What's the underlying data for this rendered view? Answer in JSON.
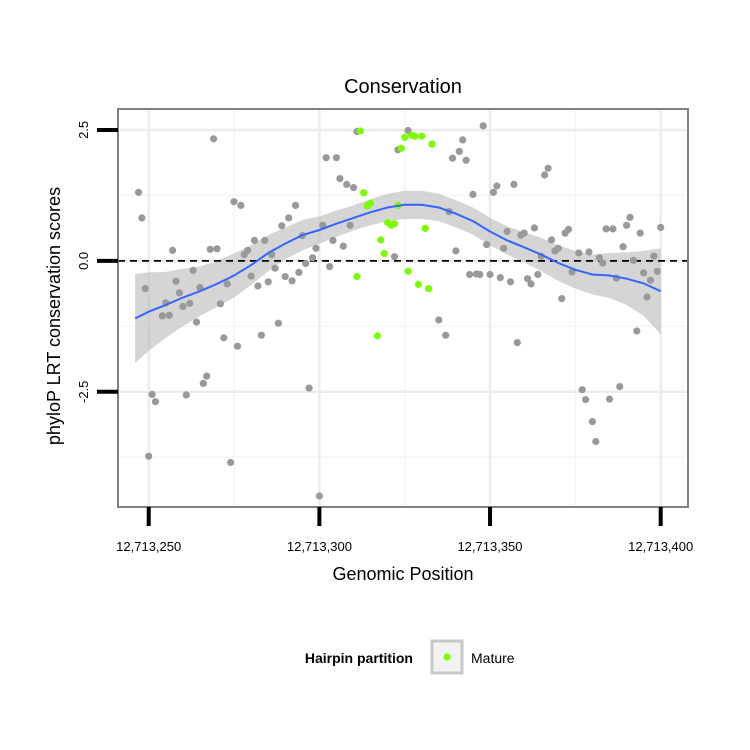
{
  "chart_data": {
    "type": "scatter",
    "title": "Conservation",
    "xlabel": "Genomic Position",
    "ylabel": "phyloP LRT conservation scores",
    "xlim": [
      12713241,
      12713408
    ],
    "ylim": [
      -4.7,
      2.9
    ],
    "x_ticks": [
      12713250,
      12713300,
      12713350,
      12713400
    ],
    "x_tick_labels": [
      "12,713,250",
      "12,713,300",
      "12,713,350",
      "12,713,400"
    ],
    "y_ticks": [
      -2.5,
      0.0,
      2.5
    ],
    "y_tick_labels": [
      "-2.5",
      "0.0",
      "2.5"
    ],
    "minor_y": [
      -3.75,
      -1.25,
      1.25
    ],
    "minor_x": [
      12713275,
      12713325,
      12713375
    ],
    "grid": true,
    "reference_line": {
      "y": 0,
      "style": "dashed",
      "color": "#000000"
    },
    "colors": {
      "other": "#999999",
      "mature": "#7cfc00",
      "smooth": "#3366ff",
      "band": "#bfbfbf",
      "panel_border": "#808080",
      "grid": "#ececec"
    },
    "legend": {
      "title": "Hairpin partition",
      "entries": [
        {
          "label": "Mature",
          "color": "#7cfc00"
        }
      ],
      "placement": "bottom"
    },
    "series": [
      {
        "name": "Other",
        "points": [
          [
            12713247,
            1.31
          ],
          [
            12713248,
            0.82
          ],
          [
            12713249,
            -0.53
          ],
          [
            12713250,
            -3.73
          ],
          [
            12713251,
            -2.55
          ],
          [
            12713252,
            -2.69
          ],
          [
            12713254,
            -1.05
          ],
          [
            12713255,
            -0.8
          ],
          [
            12713256,
            -1.04
          ],
          [
            12713257,
            0.2
          ],
          [
            12713258,
            -0.39
          ],
          [
            12713259,
            -0.61
          ],
          [
            12713260,
            -0.87
          ],
          [
            12713261,
            -2.56
          ],
          [
            12713262,
            -0.81
          ],
          [
            12713263,
            -0.18
          ],
          [
            12713264,
            -1.17
          ],
          [
            12713265,
            -0.51
          ],
          [
            12713266,
            -2.34
          ],
          [
            12713267,
            -2.2
          ],
          [
            12713268,
            0.22
          ],
          [
            12713269,
            2.33
          ],
          [
            12713270,
            0.23
          ],
          [
            12713271,
            -0.82
          ],
          [
            12713272,
            -1.47
          ],
          [
            12713273,
            -0.44
          ],
          [
            12713274,
            -3.85
          ],
          [
            12713275,
            1.13
          ],
          [
            12713276,
            -1.63
          ],
          [
            12713277,
            1.06
          ],
          [
            12713278,
            0.12
          ],
          [
            12713279,
            0.2
          ],
          [
            12713280,
            -0.29
          ],
          [
            12713281,
            0.39
          ],
          [
            12713282,
            -0.48
          ],
          [
            12713283,
            -1.42
          ],
          [
            12713284,
            0.39
          ],
          [
            12713285,
            -0.4
          ],
          [
            12713286,
            0.12
          ],
          [
            12713287,
            -0.14
          ],
          [
            12713288,
            -1.19
          ],
          [
            12713289,
            0.67
          ],
          [
            12713290,
            -0.3
          ],
          [
            12713291,
            0.82
          ],
          [
            12713292,
            -0.38
          ],
          [
            12713293,
            1.06
          ],
          [
            12713294,
            -0.22
          ],
          [
            12713295,
            0.48
          ],
          [
            12713296,
            -0.05
          ],
          [
            12713297,
            -2.43
          ],
          [
            12713298,
            0.06
          ],
          [
            12713299,
            0.24
          ],
          [
            12713300,
            -4.49
          ],
          [
            12713301,
            0.68
          ],
          [
            12713302,
            1.97
          ],
          [
            12713303,
            -0.11
          ],
          [
            12713304,
            0.39
          ],
          [
            12713305,
            1.97
          ],
          [
            12713306,
            1.57
          ],
          [
            12713307,
            0.28
          ],
          [
            12713308,
            1.46
          ],
          [
            12713309,
            0.68
          ],
          [
            12713310,
            1.4
          ],
          [
            12713311,
            2.47
          ],
          [
            12713322,
            0.08
          ],
          [
            12713323,
            2.12
          ],
          [
            12713326,
            2.49
          ],
          [
            12713335,
            -1.13
          ],
          [
            12713337,
            -1.42
          ],
          [
            12713338,
            0.94
          ],
          [
            12713339,
            1.96
          ],
          [
            12713340,
            0.19
          ],
          [
            12713341,
            2.09
          ],
          [
            12713342,
            2.31
          ],
          [
            12713343,
            1.92
          ],
          [
            12713344,
            -0.26
          ],
          [
            12713345,
            1.27
          ],
          [
            12713346,
            -0.25
          ],
          [
            12713347,
            -0.26
          ],
          [
            12713348,
            2.58
          ],
          [
            12713349,
            0.31
          ],
          [
            12713350,
            -0.26
          ],
          [
            12713351,
            1.31
          ],
          [
            12713352,
            1.43
          ],
          [
            12713353,
            -0.32
          ],
          [
            12713354,
            0.24
          ],
          [
            12713355,
            0.56
          ],
          [
            12713356,
            -0.4
          ],
          [
            12713357,
            1.46
          ],
          [
            12713358,
            -1.56
          ],
          [
            12713359,
            0.49
          ],
          [
            12713360,
            0.53
          ],
          [
            12713361,
            -0.34
          ],
          [
            12713362,
            -0.44
          ],
          [
            12713363,
            0.63
          ],
          [
            12713364,
            -0.26
          ],
          [
            12713365,
            0.09
          ],
          [
            12713366,
            1.64
          ],
          [
            12713367,
            1.77
          ],
          [
            12713368,
            0.4
          ],
          [
            12713369,
            0.19
          ],
          [
            12713370,
            0.24
          ],
          [
            12713371,
            -0.72
          ],
          [
            12713372,
            0.53
          ],
          [
            12713373,
            0.6
          ],
          [
            12713374,
            -0.21
          ],
          [
            12713376,
            0.15
          ],
          [
            12713377,
            -2.46
          ],
          [
            12713378,
            -2.65
          ],
          [
            12713379,
            0.17
          ],
          [
            12713380,
            -3.07
          ],
          [
            12713381,
            -3.45
          ],
          [
            12713382,
            0.06
          ],
          [
            12713383,
            -0.04
          ],
          [
            12713384,
            0.61
          ],
          [
            12713385,
            -2.64
          ],
          [
            12713386,
            0.61
          ],
          [
            12713387,
            -0.33
          ],
          [
            12713388,
            -2.4
          ],
          [
            12713389,
            0.27
          ],
          [
            12713390,
            0.68
          ],
          [
            12713391,
            0.83
          ],
          [
            12713392,
            0.01
          ],
          [
            12713393,
            -1.34
          ],
          [
            12713394,
            0.53
          ],
          [
            12713395,
            -0.23
          ],
          [
            12713396,
            -0.69
          ],
          [
            12713397,
            -0.37
          ],
          [
            12713398,
            0.09
          ],
          [
            12713399,
            -0.2
          ],
          [
            12713400,
            0.64
          ]
        ]
      },
      {
        "name": "Mature",
        "points": [
          [
            12713311,
            -0.3
          ],
          [
            12713312,
            2.48
          ],
          [
            12713313,
            1.3
          ],
          [
            12713314,
            1.05
          ],
          [
            12713315,
            1.1
          ],
          [
            12713317,
            -1.43
          ],
          [
            12713318,
            0.4
          ],
          [
            12713319,
            0.14
          ],
          [
            12713320,
            0.73
          ],
          [
            12713321,
            0.68
          ],
          [
            12713322,
            0.71
          ],
          [
            12713323,
            1.06
          ],
          [
            12713324,
            2.15
          ],
          [
            12713325,
            2.36
          ],
          [
            12713326,
            -0.2
          ],
          [
            12713327,
            2.4
          ],
          [
            12713328,
            2.38
          ],
          [
            12713329,
            -0.45
          ],
          [
            12713330,
            2.38
          ],
          [
            12713331,
            0.62
          ],
          [
            12713332,
            -0.53
          ],
          [
            12713333,
            2.23
          ]
        ]
      }
    ],
    "smooth": {
      "x": [
        12713246,
        12713250,
        12713255,
        12713260,
        12713265,
        12713270,
        12713275,
        12713280,
        12713285,
        12713290,
        12713295,
        12713300,
        12713305,
        12713310,
        12713315,
        12713320,
        12713325,
        12713330,
        12713335,
        12713340,
        12713345,
        12713350,
        12713355,
        12713360,
        12713365,
        12713370,
        12713375,
        12713380,
        12713385,
        12713390,
        12713395,
        12713400
      ],
      "y": [
        -1.1,
        -0.97,
        -0.84,
        -0.7,
        -0.58,
        -0.44,
        -0.28,
        -0.08,
        0.15,
        0.33,
        0.49,
        0.59,
        0.71,
        0.82,
        0.93,
        1.02,
        1.07,
        1.07,
        1.02,
        0.9,
        0.76,
        0.56,
        0.39,
        0.26,
        0.12,
        -0.04,
        -0.17,
        -0.26,
        -0.28,
        -0.34,
        -0.43,
        -0.58
      ],
      "ymin": [
        -1.95,
        -1.72,
        -1.47,
        -1.25,
        -1.05,
        -0.88,
        -0.7,
        -0.46,
        -0.2,
        0.03,
        0.2,
        0.33,
        0.46,
        0.58,
        0.68,
        0.76,
        0.8,
        0.8,
        0.76,
        0.64,
        0.5,
        0.3,
        0.12,
        -0.03,
        -0.2,
        -0.38,
        -0.53,
        -0.64,
        -0.71,
        -0.84,
        -1.05,
        -1.4
      ],
      "ymax": [
        -0.25,
        -0.22,
        -0.21,
        -0.15,
        -0.11,
        0.0,
        0.14,
        0.3,
        0.5,
        0.63,
        0.78,
        0.85,
        0.96,
        1.06,
        1.18,
        1.28,
        1.34,
        1.34,
        1.28,
        1.16,
        1.02,
        0.82,
        0.66,
        0.55,
        0.44,
        0.3,
        0.19,
        0.12,
        0.15,
        0.16,
        0.19,
        0.24
      ]
    }
  }
}
